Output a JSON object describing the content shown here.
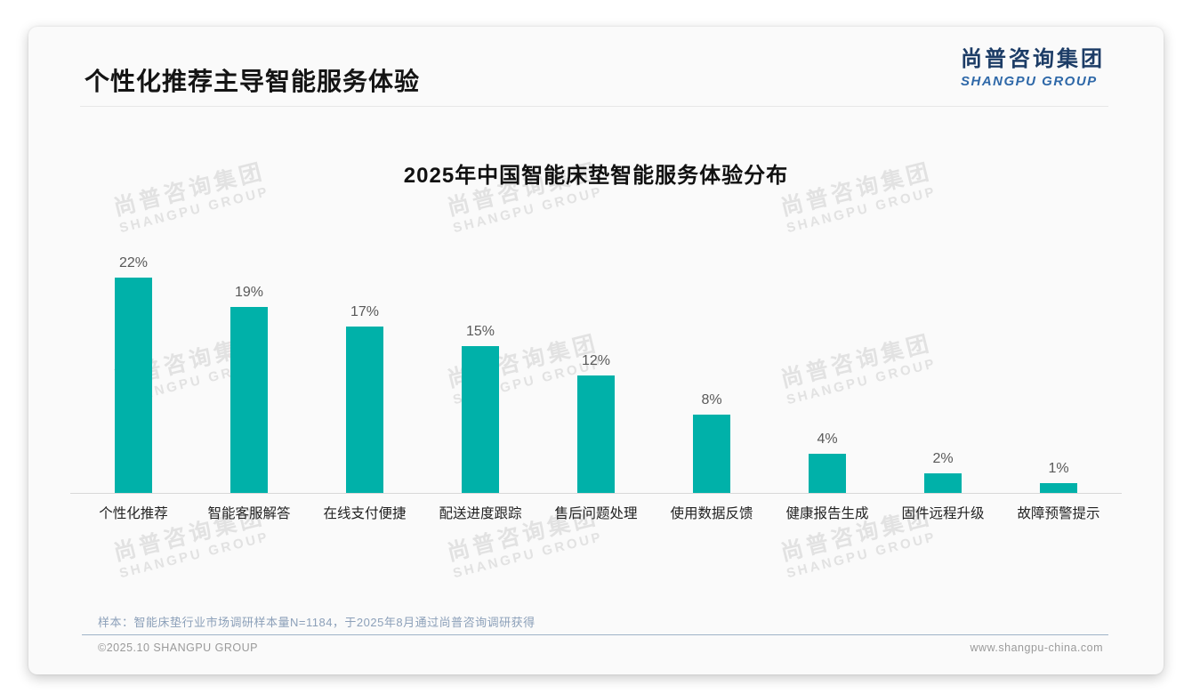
{
  "slide": {
    "header": {
      "title": "个性化推荐主导智能服务体验",
      "logo": {
        "cn": "尚普咨询集团",
        "en": "SHANGPU GROUP"
      }
    },
    "watermark": {
      "cn": "尚普咨询集团",
      "en": "SHANGPU GROUP"
    },
    "note": "样本：智能床垫行业市场调研样本量N=1184，于2025年8月通过尚普咨询调研获得",
    "footer": {
      "copyright": "©2025.10 SHANGPU GROUP",
      "website": "www.shangpu-china.com"
    }
  },
  "colors": {
    "bar": "#00b1a9",
    "logo_cn": "#1c3c66",
    "logo_en": "#2e68a8",
    "note_text": "#8ca0b9",
    "slide_background": "#fafafa"
  },
  "chart_data": {
    "type": "bar",
    "title": "2025年中国智能床垫智能服务体验分布",
    "categories": [
      "个性化推荐",
      "智能客服解答",
      "在线支付便捷",
      "配送进度跟踪",
      "售后问题处理",
      "使用数据反馈",
      "健康报告生成",
      "固件远程升级",
      "故障预警提示"
    ],
    "values": [
      22,
      19,
      17,
      15,
      12,
      8,
      4,
      2,
      1
    ],
    "value_labels": [
      "22%",
      "19%",
      "17%",
      "15%",
      "12%",
      "8%",
      "4%",
      "2%",
      "1%"
    ],
    "unit": "%",
    "xlabel": "",
    "ylabel": "",
    "ylim": [
      0,
      25
    ],
    "grid": false,
    "legend": false,
    "bar_color": "#00b1a9"
  }
}
